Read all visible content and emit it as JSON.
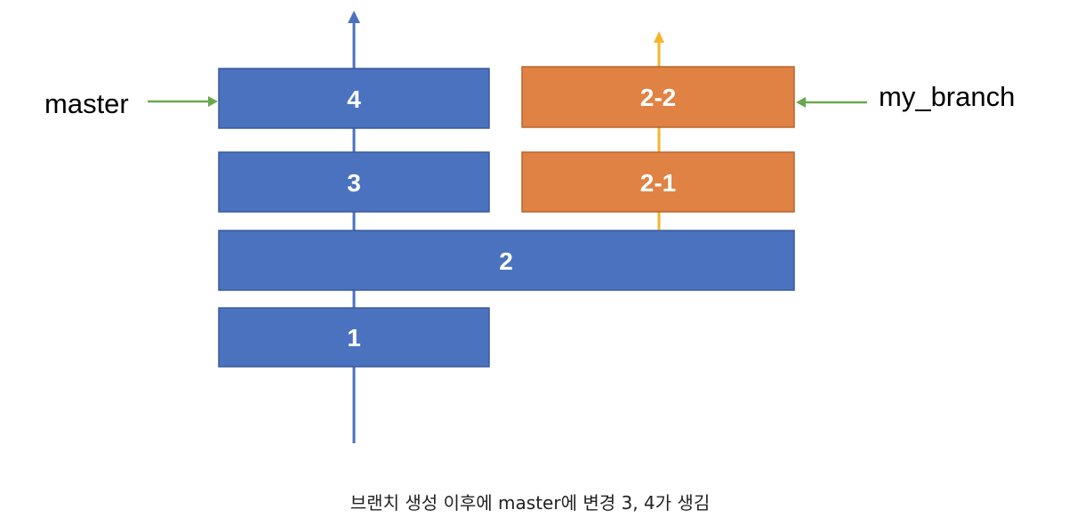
{
  "colors": {
    "master_box": "#4a72bf",
    "master_box_border": "#3a5a98",
    "branch_box": "#e08244",
    "branch_box_border": "#b9652f",
    "master_line": "#4a72bf",
    "branch_line": "#f4b52c",
    "pointer_arrow": "#6aa84f"
  },
  "master": {
    "pointer_label": "master",
    "commits": {
      "c1": "1",
      "c2": "2",
      "c3": "3",
      "c4": "4"
    }
  },
  "branch": {
    "pointer_label": "my_branch",
    "commits": {
      "c21": "2-1",
      "c22": "2-2"
    }
  },
  "caption": "브랜치 생성 이후에 master에 변경 3, 4가 생김"
}
